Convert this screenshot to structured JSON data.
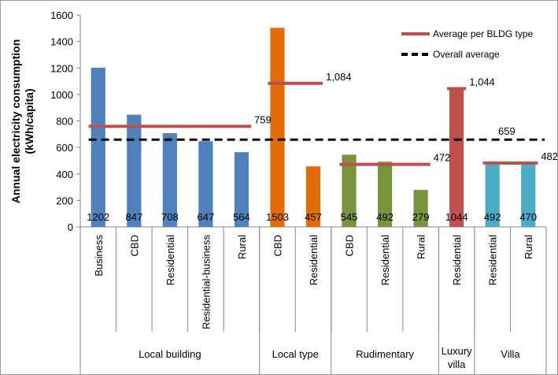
{
  "chart_data": {
    "type": "bar",
    "ylabel_line1": "Annual electricity consumption",
    "ylabel_line2": "(kWh/capita)",
    "ylim": [
      0,
      1600
    ],
    "yticks": [
      0,
      200,
      400,
      600,
      800,
      1000,
      1200,
      1400,
      1600
    ],
    "grid": false,
    "legend_position": "top-right",
    "groups": [
      {
        "name": "Local building",
        "color": "#4f81bd",
        "average": 759,
        "average_label": "759",
        "categories": [
          "Business",
          "CBD",
          "Residential",
          "Residential-business",
          "Rural"
        ],
        "values": [
          1202,
          847,
          708,
          647,
          564
        ]
      },
      {
        "name": "Local type",
        "color": "#e36c09",
        "average": 1084,
        "average_label": "1,084",
        "categories": [
          "CBD",
          "Residential"
        ],
        "values": [
          1503,
          457
        ]
      },
      {
        "name": "Rudimentary",
        "color": "#77933c",
        "average": 472,
        "average_label": "472",
        "categories": [
          "CBD",
          "Residential",
          "Rural"
        ],
        "values": [
          545,
          492,
          279
        ]
      },
      {
        "name": "Luxury villa",
        "name_lines": [
          "Luxury",
          "villa"
        ],
        "color": "#c0504d",
        "average": 1044,
        "average_label": "1,044",
        "categories": [
          "Residential"
        ],
        "values": [
          1044
        ]
      },
      {
        "name": "Villa",
        "color": "#4bacc6",
        "average": 482,
        "average_label": "482",
        "categories": [
          "Residential",
          "Rural"
        ],
        "values": [
          492,
          470
        ]
      }
    ],
    "overall_average": 659,
    "overall_average_label": "659",
    "legend": {
      "group_average": "Average per BLDG type",
      "overall_average": "Overall average"
    },
    "colors": {
      "average_line": "#c0504d",
      "overall_line": "#000000",
      "axis": "#868686"
    }
  }
}
